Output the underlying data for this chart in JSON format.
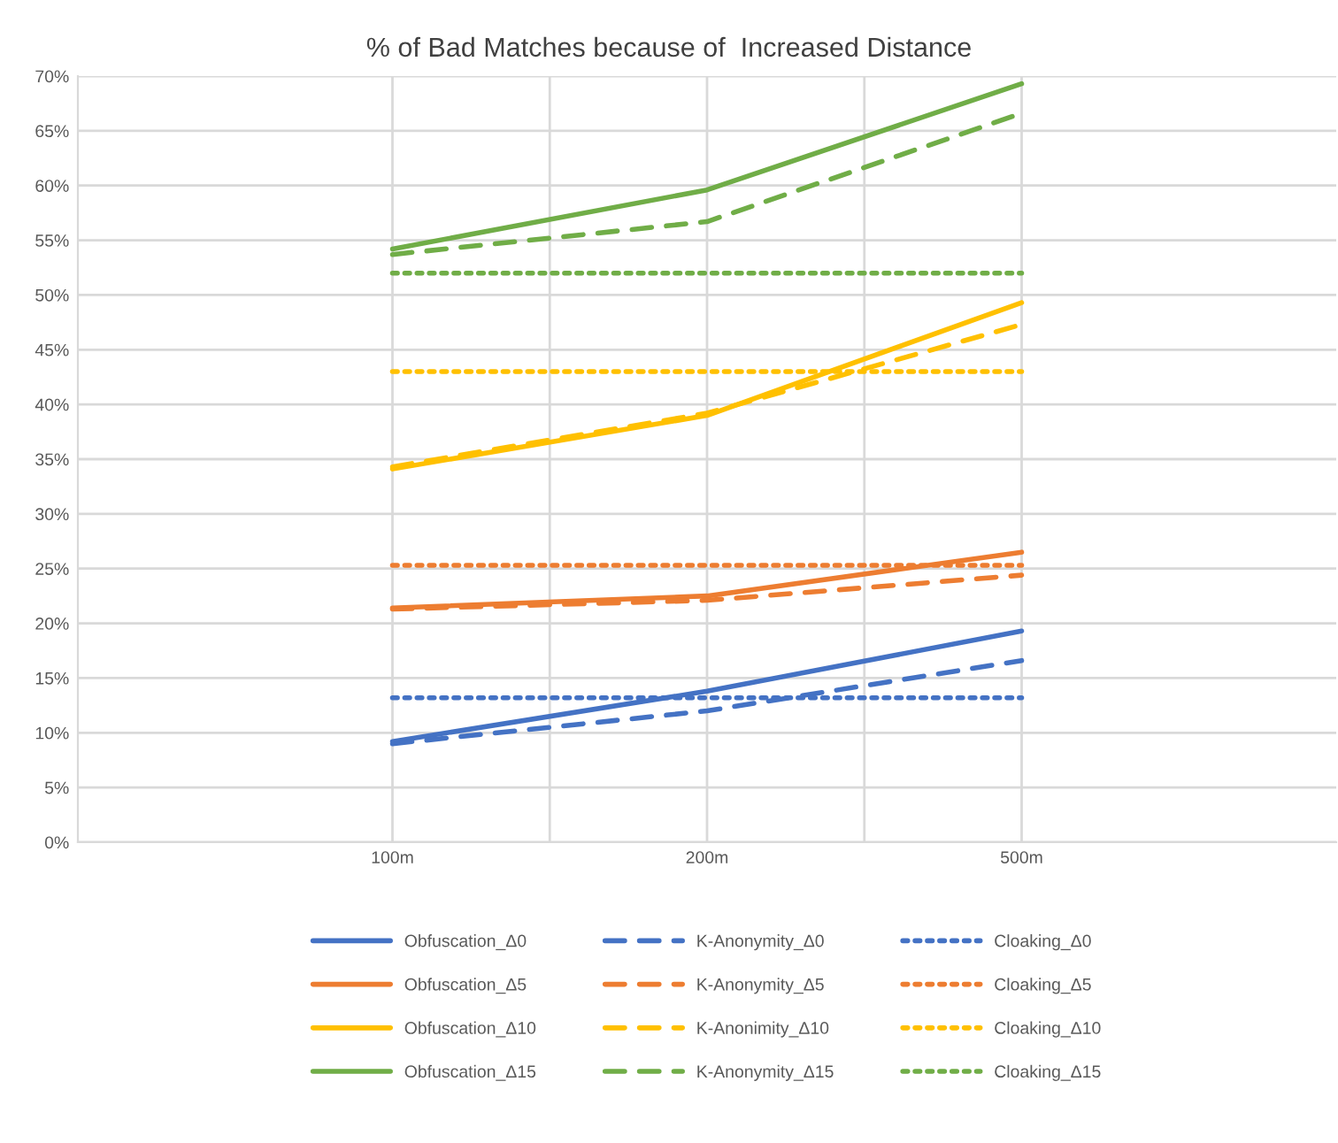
{
  "chart_data": {
    "type": "line",
    "title": "% of Bad Matches because of  Increased Distance",
    "categories": [
      "100m",
      "200m",
      "500m"
    ],
    "ylim": [
      0,
      70
    ],
    "yticks": [
      {
        "value": 0,
        "label": "0%"
      },
      {
        "value": 5,
        "label": "5%"
      },
      {
        "value": 10,
        "label": "10%"
      },
      {
        "value": 15,
        "label": "15%"
      },
      {
        "value": 20,
        "label": "20%"
      },
      {
        "value": 25,
        "label": "25%"
      },
      {
        "value": 30,
        "label": "30%"
      },
      {
        "value": 35,
        "label": "35%"
      },
      {
        "value": 40,
        "label": "40%"
      },
      {
        "value": 45,
        "label": "45%"
      },
      {
        "value": 50,
        "label": "50%"
      },
      {
        "value": 55,
        "label": "55%"
      },
      {
        "value": 60,
        "label": "60%"
      },
      {
        "value": 65,
        "label": "65%"
      },
      {
        "value": 70,
        "label": "70%"
      }
    ],
    "grid": true,
    "legend": "bottom",
    "marker": "none",
    "series": [
      {
        "name": "Obfuscation_Δ0",
        "color": "#4472c4",
        "line_style": "solid",
        "values": [
          9.2,
          13.8,
          19.3
        ]
      },
      {
        "name": "Obfuscation_Δ5",
        "color": "#ed7d31",
        "line_style": "solid",
        "values": [
          21.4,
          22.5,
          26.5
        ]
      },
      {
        "name": "Obfuscation_Δ10",
        "color": "#ffc000",
        "line_style": "solid",
        "values": [
          34.1,
          39.0,
          49.3
        ]
      },
      {
        "name": "Obfuscation_Δ15",
        "color": "#70ad47",
        "line_style": "solid",
        "values": [
          54.2,
          59.6,
          69.3
        ]
      },
      {
        "name": "K-Anonymity_Δ0",
        "color": "#4472c4",
        "line_style": "dashed",
        "values": [
          9.0,
          12.0,
          16.6
        ]
      },
      {
        "name": "K-Anonymity_Δ5",
        "color": "#ed7d31",
        "line_style": "dashed",
        "values": [
          21.3,
          22.1,
          24.4
        ]
      },
      {
        "name": "K-Anonimity_Δ10",
        "color": "#ffc000",
        "line_style": "dashed",
        "values": [
          34.3,
          39.2,
          47.3
        ]
      },
      {
        "name": "K-Anonymity_Δ15",
        "color": "#70ad47",
        "line_style": "dashed",
        "values": [
          53.7,
          56.7,
          66.6
        ]
      },
      {
        "name": "Cloaking_Δ0",
        "color": "#4472c4",
        "line_style": "dotted",
        "values": [
          13.2,
          13.2,
          13.2
        ]
      },
      {
        "name": "Cloaking_Δ5",
        "color": "#ed7d31",
        "line_style": "dotted",
        "values": [
          25.3,
          25.3,
          25.3
        ]
      },
      {
        "name": "Cloaking_Δ10",
        "color": "#ffc000",
        "line_style": "dotted",
        "values": [
          43.0,
          43.0,
          43.0
        ]
      },
      {
        "name": "Cloaking_Δ15",
        "color": "#70ad47",
        "line_style": "dotted",
        "values": [
          52.0,
          52.0,
          52.0
        ]
      }
    ]
  }
}
